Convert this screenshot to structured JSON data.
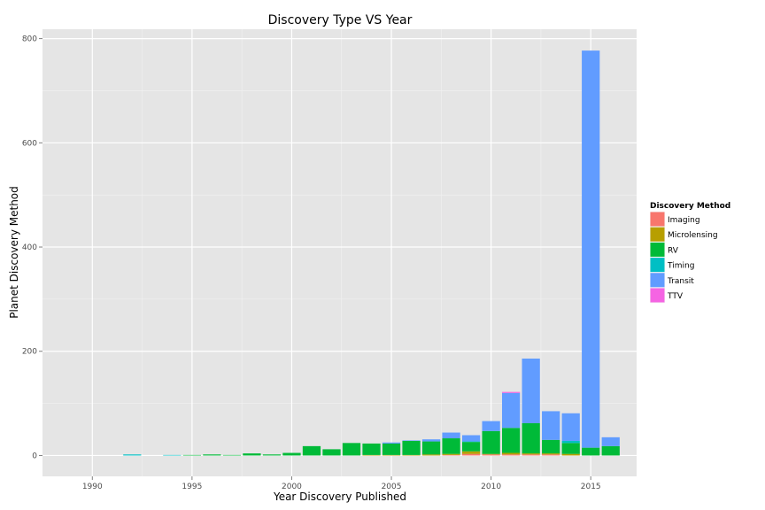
{
  "chart_data": {
    "type": "bar",
    "stacked": true,
    "title": "Discovery Type VS Year",
    "xlabel": "Year Discovery Published",
    "ylabel": "Planet Discovery Method",
    "xlim": [
      1987.5,
      2017.3
    ],
    "ylim": [
      -40,
      818
    ],
    "x_ticks": [
      1990,
      1995,
      2000,
      2005,
      2010,
      2015
    ],
    "y_ticks": [
      0,
      200,
      400,
      600,
      800
    ],
    "grid": true,
    "legend": {
      "title": "Discovery Method",
      "position": "right"
    },
    "series": [
      {
        "name": "Imaging",
        "color": "#F8766D"
      },
      {
        "name": "Microlensing",
        "color": "#B79F00"
      },
      {
        "name": "RV",
        "color": "#00BA38"
      },
      {
        "name": "Timing",
        "color": "#00BFC4"
      },
      {
        "name": "Transit",
        "color": "#619CFF"
      },
      {
        "name": "TTV",
        "color": "#F564E3"
      }
    ],
    "bars": [
      {
        "year": 1992,
        "values": {
          "Timing": 2
        }
      },
      {
        "year": 1994,
        "values": {
          "Timing": 1
        }
      },
      {
        "year": 1995,
        "values": {
          "RV": 1
        }
      },
      {
        "year": 1996,
        "values": {
          "RV": 2
        }
      },
      {
        "year": 1997,
        "values": {
          "RV": 1
        }
      },
      {
        "year": 1998,
        "values": {
          "RV": 4
        }
      },
      {
        "year": 1999,
        "values": {
          "RV": 2
        }
      },
      {
        "year": 2000,
        "values": {
          "RV": 5
        }
      },
      {
        "year": 2001,
        "values": {
          "RV": 18
        }
      },
      {
        "year": 2002,
        "values": {
          "RV": 12
        }
      },
      {
        "year": 2003,
        "values": {
          "RV": 24
        }
      },
      {
        "year": 2004,
        "values": {
          "Microlensing": 1,
          "RV": 22
        }
      },
      {
        "year": 2005,
        "values": {
          "Microlensing": 1,
          "RV": 22,
          "Transit": 2
        }
      },
      {
        "year": 2006,
        "values": {
          "Microlensing": 1,
          "RV": 27,
          "Transit": 1
        }
      },
      {
        "year": 2007,
        "values": {
          "Microlensing": 2,
          "RV": 25,
          "Transit": 4
        }
      },
      {
        "year": 2008,
        "values": {
          "Imaging": 1,
          "Microlensing": 2,
          "RV": 30,
          "Transit": 11
        }
      },
      {
        "year": 2009,
        "values": {
          "Imaging": 3,
          "Microlensing": 5,
          "RV": 18,
          "Timing": 1,
          "Transit": 12
        }
      },
      {
        "year": 2010,
        "values": {
          "Imaging": 2,
          "Microlensing": 1,
          "RV": 44,
          "Transit": 19
        }
      },
      {
        "year": 2011,
        "values": {
          "Imaging": 2,
          "Microlensing": 3,
          "RV": 48,
          "Transit": 67,
          "TTV": 2
        }
      },
      {
        "year": 2012,
        "values": {
          "Imaging": 2,
          "Microlensing": 2,
          "RV": 58,
          "Transit": 124
        }
      },
      {
        "year": 2013,
        "values": {
          "Imaging": 2,
          "Microlensing": 2,
          "RV": 26,
          "Transit": 55
        }
      },
      {
        "year": 2014,
        "values": {
          "Microlensing": 3,
          "RV": 21,
          "Timing": 4,
          "Transit": 53
        }
      },
      {
        "year": 2015,
        "values": {
          "RV": 15,
          "Transit": 762
        }
      },
      {
        "year": 2016,
        "values": {
          "RV": 18,
          "Transit": 17
        }
      }
    ]
  }
}
